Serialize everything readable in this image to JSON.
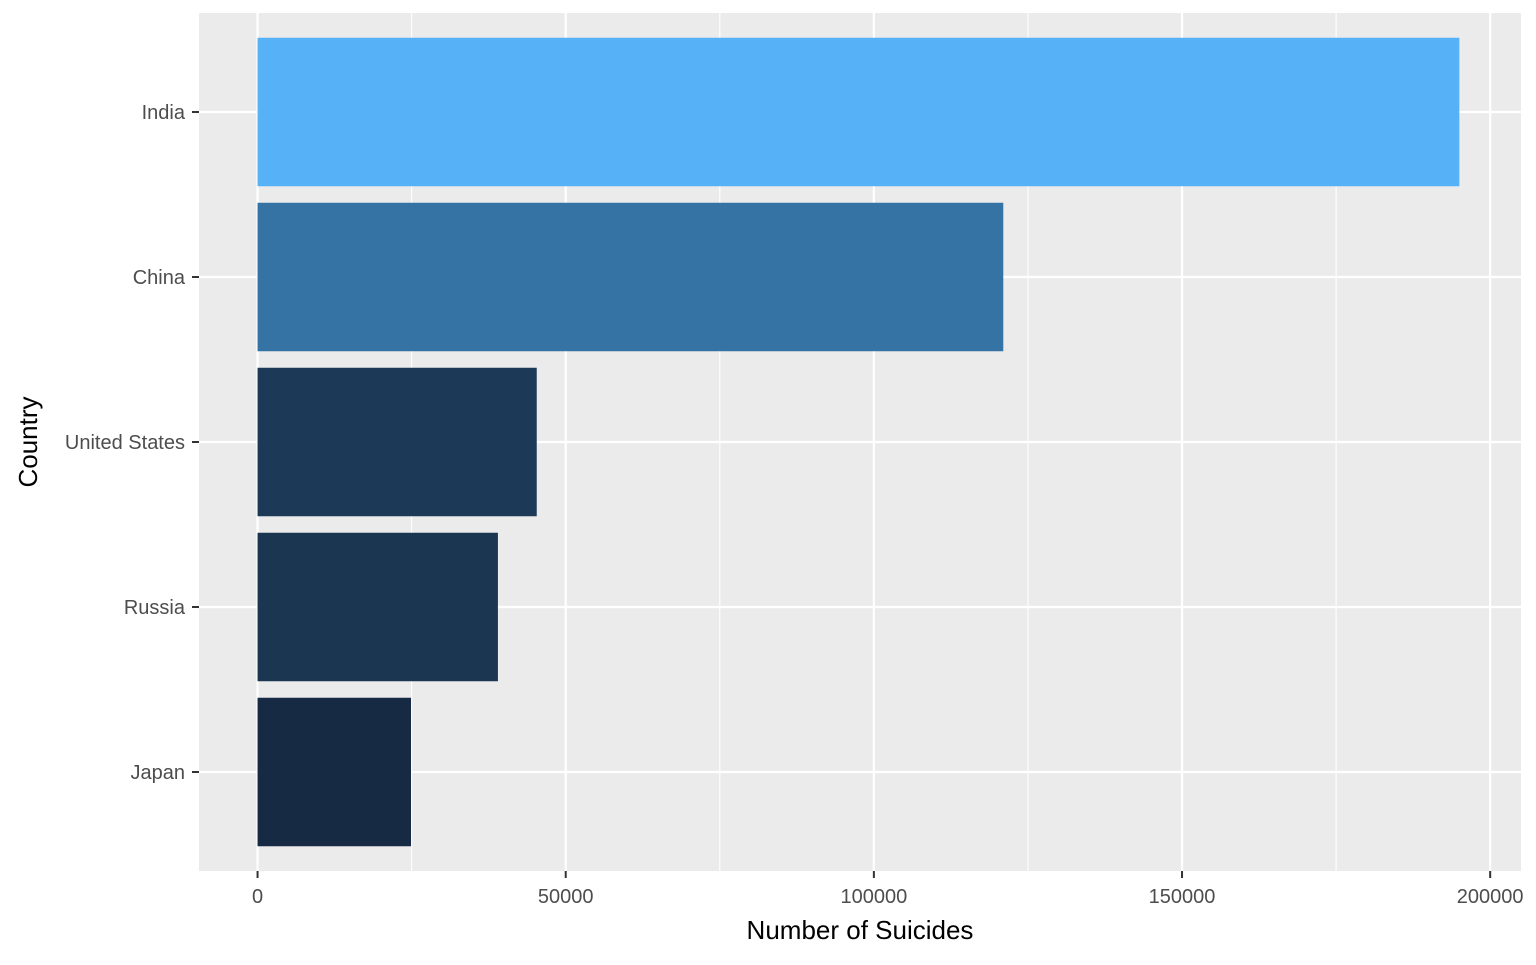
{
  "chart_data": {
    "type": "bar",
    "orientation": "horizontal",
    "xlabel": "Number of Suicides",
    "ylabel": "Country",
    "categories": [
      "India",
      "China",
      "United States",
      "Russia",
      "Japan"
    ],
    "values": [
      195000,
      121000,
      45300,
      39000,
      24900
    ],
    "colors": [
      "#56B1F7",
      "#3673A5",
      "#1C3A58",
      "#1A3650",
      "#172A43"
    ],
    "xlim": [
      -9500,
      205000
    ],
    "xticks": [
      0,
      50000,
      100000,
      150000,
      200000
    ],
    "xtick_labels": [
      "0",
      "50000",
      "100000",
      "150000",
      "200000"
    ],
    "grid": true,
    "legend": "none",
    "panel_background": "#EBEBEB",
    "grid_color": "#FFFFFF"
  }
}
